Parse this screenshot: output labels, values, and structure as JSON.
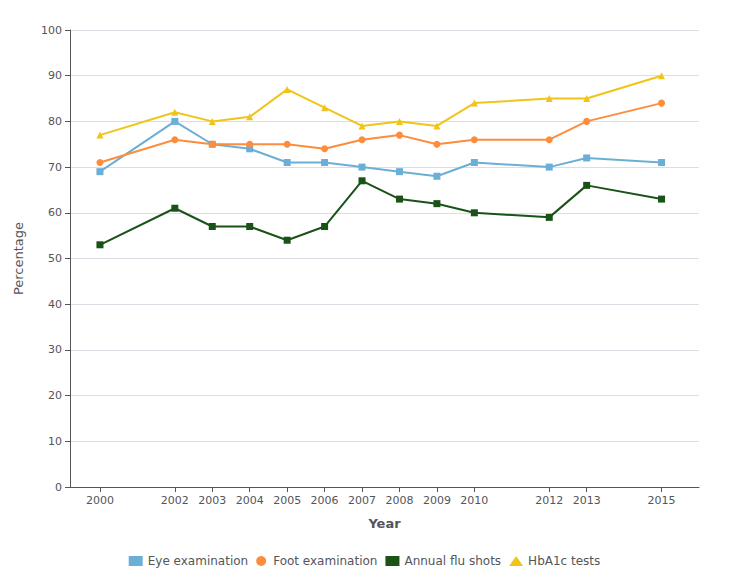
{
  "chart_data": {
    "type": "line",
    "xlabel": "Year",
    "ylabel": "Percentage",
    "x": [
      2000,
      2002,
      2003,
      2004,
      2005,
      2006,
      2007,
      2008,
      2009,
      2010,
      2012,
      2013,
      2015
    ],
    "series": [
      {
        "name": "Eye examination",
        "color": "#6baed6",
        "marker": "square",
        "values": [
          69,
          80,
          75,
          74,
          71,
          71,
          70,
          69,
          68,
          71,
          70,
          72,
          71
        ]
      },
      {
        "name": "Foot examination",
        "color": "#fd8d3c",
        "marker": "circle",
        "values": [
          71,
          76,
          75,
          75,
          75,
          74,
          76,
          77,
          75,
          76,
          76,
          80,
          84
        ]
      },
      {
        "name": "Annual flu shots",
        "color": "#1a5218",
        "marker": "square",
        "values": [
          53,
          61,
          57,
          57,
          54,
          57,
          67,
          63,
          62,
          60,
          59,
          66,
          63
        ]
      },
      {
        "name": "HbA1c tests",
        "color": "#f0c419",
        "marker": "triangle",
        "values": [
          77,
          82,
          80,
          81,
          87,
          83,
          79,
          80,
          79,
          84,
          85,
          85,
          90
        ]
      }
    ],
    "xlim": [
      1999.2,
      2016
    ],
    "xticks": [
      2000,
      2002,
      2003,
      2004,
      2005,
      2006,
      2007,
      2008,
      2009,
      2010,
      2012,
      2013,
      2015
    ],
    "ylim": [
      0,
      100
    ],
    "yticks": [
      0,
      10,
      20,
      30,
      40,
      50,
      60,
      70,
      80,
      90,
      100
    ],
    "grid": true,
    "legend": "bottom"
  }
}
